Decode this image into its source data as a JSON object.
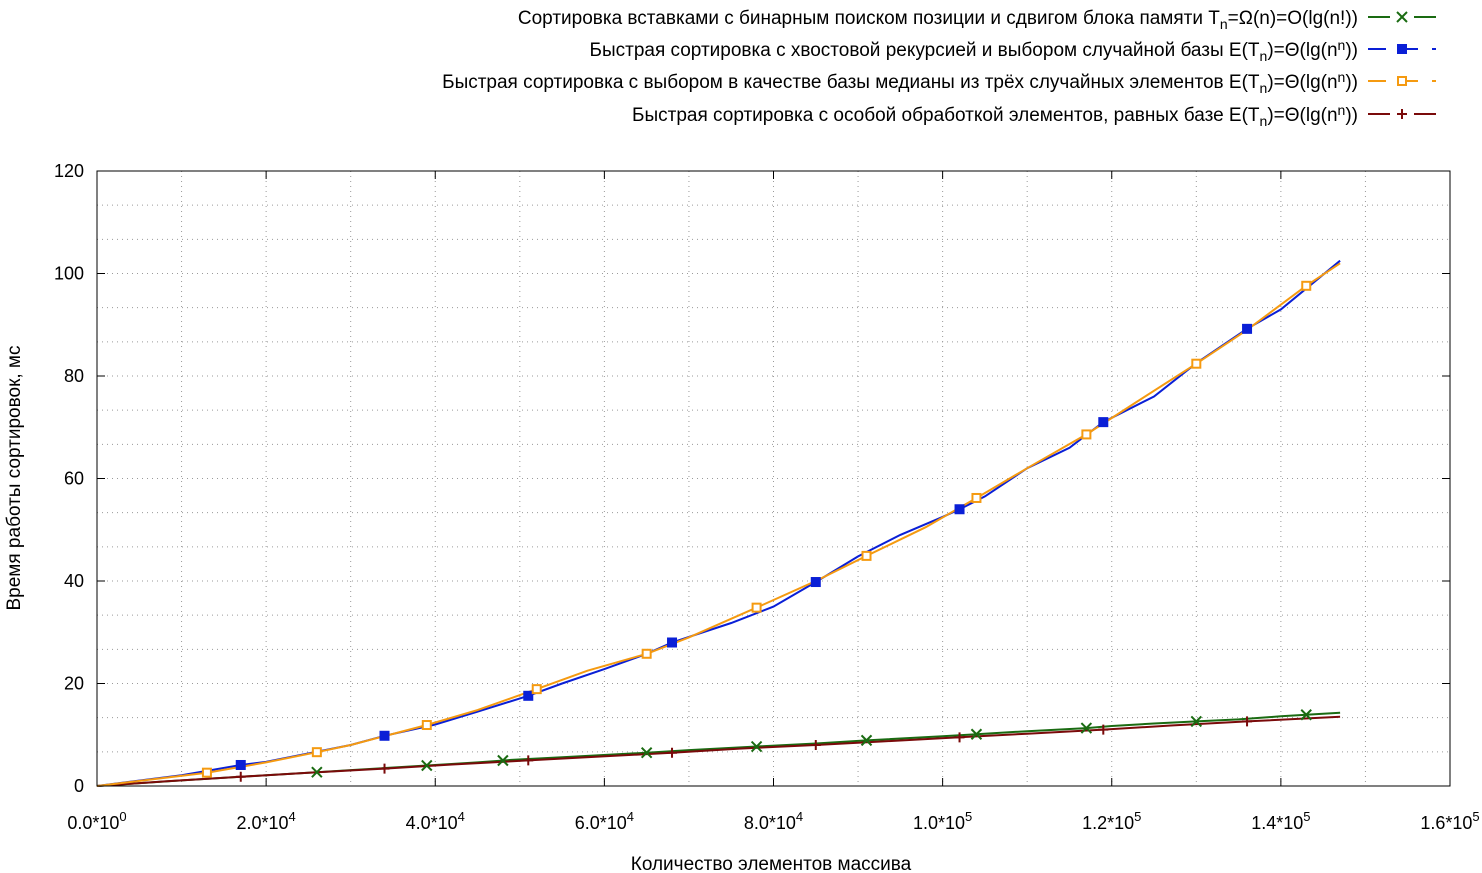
{
  "chart_data": {
    "type": "line",
    "title": "",
    "xlabel": "Количество элементов массива",
    "ylabel": "Время работы сортировок, мс",
    "xlim": [
      0,
      160000
    ],
    "ylim": [
      0,
      120
    ],
    "grid": true,
    "legend_position": "top-right",
    "x_ticks": [
      {
        "value": 0,
        "mantissa": "0.0",
        "exp": "0"
      },
      {
        "value": 20000,
        "mantissa": "2.0",
        "exp": "4"
      },
      {
        "value": 40000,
        "mantissa": "4.0",
        "exp": "4"
      },
      {
        "value": 60000,
        "mantissa": "6.0",
        "exp": "4"
      },
      {
        "value": 80000,
        "mantissa": "8.0",
        "exp": "4"
      },
      {
        "value": 100000,
        "mantissa": "1.0",
        "exp": "5"
      },
      {
        "value": 120000,
        "mantissa": "1.2",
        "exp": "5"
      },
      {
        "value": 140000,
        "mantissa": "1.4",
        "exp": "5"
      },
      {
        "value": 160000,
        "mantissa": "1.6",
        "exp": "5"
      }
    ],
    "y_ticks": [
      0,
      20,
      40,
      60,
      80,
      100,
      120
    ],
    "series": [
      {
        "name": "Сортировка вставками с бинарным поиском позиции и сдвигом блока памяти T_n=Ω(n)=O(lg(n!))",
        "legend": {
          "pre": "Сортировка вставками с бинарным поиском позиции и сдвигом блока памяти T",
          "sub": "n",
          "post": "=Ω(n)=O(lg(n!))"
        },
        "color": "#1a6b12",
        "marker": "x",
        "x": [
          0,
          10000,
          20000,
          26000,
          30000,
          39000,
          45000,
          49000,
          55000,
          65000,
          70000,
          78000,
          85000,
          91000,
          100000,
          104000,
          110000,
          117000,
          120000,
          125000,
          130000,
          135000,
          140000,
          143000,
          147000
        ],
        "y": [
          0,
          1.1,
          2.1,
          2.7,
          3.1,
          4.0,
          4.6,
          5.1,
          5.6,
          6.5,
          7.0,
          7.7,
          8.3,
          8.9,
          9.7,
          10.1,
          10.7,
          11.3,
          11.7,
          12.2,
          12.6,
          13.0,
          13.6,
          13.9,
          14.3
        ],
        "marker_x": [
          26000,
          39000,
          48000,
          65000,
          78000,
          91000,
          104000,
          117000,
          130000,
          143000
        ]
      },
      {
        "name": "Быстрая сортировка с хвостовой рекурсией и выбором случайной базы E(T_n)=Θ(lg(n^n))",
        "legend": {
          "pre": "Быстрая сортировка с хвостовой рекурсией и выбором случайной базы E(T",
          "sub": "n",
          "mid": ")=Θ(lg(n",
          "sup": "n",
          "post": "))"
        },
        "color": "#0a1fd6",
        "marker": "filled-square",
        "x": [
          0,
          10000,
          17000,
          20000,
          26000,
          30000,
          34000,
          40000,
          45000,
          51000,
          55000,
          60000,
          65000,
          68000,
          75000,
          80000,
          85000,
          90000,
          95000,
          100000,
          102000,
          105000,
          110000,
          115000,
          119000,
          125000,
          130000,
          136000,
          140000,
          147000
        ],
        "y": [
          0,
          2.1,
          4.1,
          4.7,
          6.7,
          8.0,
          9.8,
          12.0,
          14.5,
          17.6,
          20.0,
          22.8,
          25.8,
          28.0,
          31.8,
          35.0,
          39.8,
          44.8,
          49.0,
          52.5,
          54.0,
          56.5,
          62.0,
          66.0,
          71.0,
          76.0,
          82.5,
          89.2,
          93.0,
          102.5
        ],
        "marker_x": [
          17000,
          34000,
          51000,
          68000,
          85000,
          102000,
          119000,
          136000
        ]
      },
      {
        "name": "Быстрая сортировка с выбором в качестве базы медианы из трёх случайных элементов E(T_n)=Θ(lg(n^n))",
        "legend": {
          "pre": "Быстрая сортировка с выбором в качестве базы медианы из трёх случайных элементов E(T",
          "sub": "n",
          "mid": ")=Θ(lg(n",
          "sup": "n",
          "post": "))"
        },
        "color": "#f59a10",
        "marker": "open-square",
        "x": [
          0,
          13000,
          20000,
          26000,
          30000,
          39000,
          45000,
          52000,
          58000,
          65000,
          70000,
          78000,
          85000,
          91000,
          98000,
          104000,
          110000,
          117000,
          123000,
          130000,
          136000,
          143000,
          147000
        ],
        "y": [
          0,
          2.6,
          4.6,
          6.6,
          8.0,
          11.9,
          14.8,
          18.9,
          22.5,
          25.8,
          29.0,
          34.8,
          40.0,
          44.9,
          50.5,
          56.2,
          62.0,
          68.6,
          75.0,
          82.4,
          89.0,
          97.6,
          102.0
        ],
        "marker_x": [
          13000,
          26000,
          39000,
          52000,
          65000,
          78000,
          91000,
          104000,
          117000,
          130000,
          143000
        ]
      },
      {
        "name": "Быстрая сортировка с особой обработкой элементов, равных базе E(T_n)=Θ(lg(n^n))",
        "legend": {
          "pre": "Быстрая сортировка с особой обработкой элементов, равных базе E(T",
          "sub": "n",
          "mid": ")=Θ(lg(n",
          "sup": "n",
          "post": "))"
        },
        "color": "#7a0a0a",
        "marker": "plus",
        "x": [
          0,
          8000,
          17000,
          25000,
          34000,
          42000,
          51000,
          59000,
          68000,
          76000,
          85000,
          93000,
          102000,
          110000,
          119000,
          127000,
          136000,
          147000
        ],
        "y": [
          0,
          0.9,
          1.8,
          2.6,
          3.4,
          4.2,
          5.0,
          5.7,
          6.5,
          7.3,
          8.0,
          8.7,
          9.5,
          10.2,
          11.0,
          11.8,
          12.6,
          13.5
        ],
        "marker_x": [
          17000,
          34000,
          51000,
          68000,
          85000,
          102000,
          119000,
          136000
        ]
      }
    ]
  }
}
